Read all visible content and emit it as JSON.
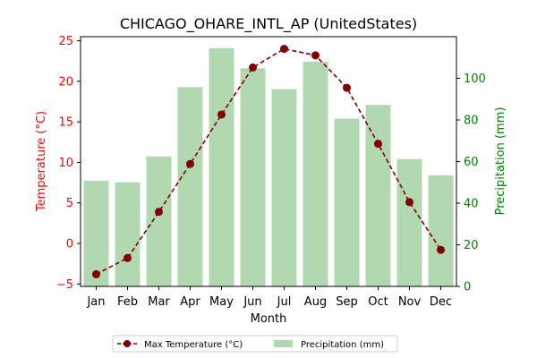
{
  "chart_data": {
    "type": "bar+line",
    "title": "CHICAGO_OHARE_INTL_AP (UnitedStates)",
    "xlabel": "Month",
    "categories": [
      "Jan",
      "Feb",
      "Mar",
      "Apr",
      "May",
      "Jun",
      "Jul",
      "Aug",
      "Sep",
      "Oct",
      "Nov",
      "Dec"
    ],
    "y_left": {
      "label": "Temperature (°C)",
      "ylim": [
        -5.3,
        25.5
      ],
      "ticks": [
        -5,
        0,
        5,
        10,
        15,
        20,
        25
      ],
      "color": "#ff0000"
    },
    "y_right": {
      "label": "Precipitation (mm)",
      "ylim": [
        0,
        120
      ],
      "ticks": [
        0,
        20,
        40,
        60,
        80,
        100
      ],
      "color": "#008000"
    },
    "series": [
      {
        "name": "Max Temperature (°C)",
        "kind": "line",
        "axis": "left",
        "color": "#800000",
        "values": [
          -3.8,
          -1.8,
          3.9,
          9.8,
          15.9,
          21.7,
          24.0,
          23.2,
          19.2,
          12.3,
          5.1,
          -0.8
        ]
      },
      {
        "name": "Precipitation (mm)",
        "kind": "bar",
        "axis": "right",
        "color": "#b2d8b2",
        "values": [
          50.8,
          50.0,
          62.5,
          95.8,
          114.5,
          104.8,
          94.8,
          108.0,
          80.6,
          87.2,
          61.2,
          53.4
        ]
      }
    ],
    "legend_placement": "bottom-center",
    "grid": false
  }
}
